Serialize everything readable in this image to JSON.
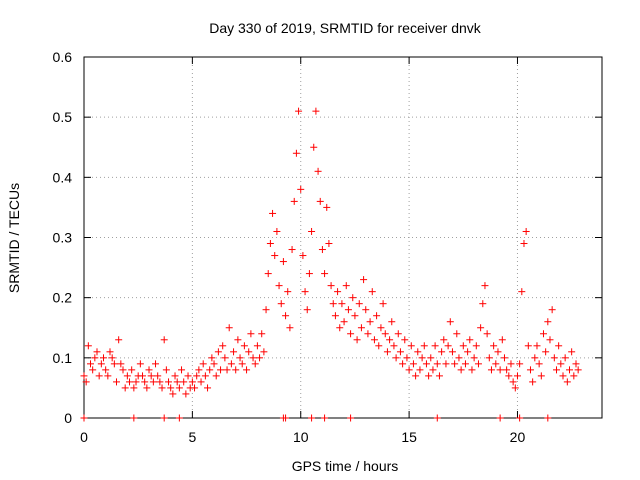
{
  "chart_data": {
    "type": "scatter",
    "title": "Day 330 of 2019, SRMTID for receiver dnvk",
    "xlabel": "GPS time / hours",
    "ylabel": "SRMTID / TECUs",
    "xlim": [
      0,
      23.9
    ],
    "ylim": [
      0,
      0.6
    ],
    "x_ticks": [
      "0",
      "5",
      "10",
      "15",
      "20"
    ],
    "x_tick_values": [
      0,
      5,
      10,
      15,
      20
    ],
    "y_ticks": [
      "0",
      "0.1",
      "0.2",
      "0.3",
      "0.4",
      "0.5",
      "0.6"
    ],
    "y_tick_values": [
      0,
      0.1,
      0.2,
      0.3,
      0.4,
      0.5,
      0.6
    ],
    "grid": true,
    "marker": "plus",
    "color": "#ff0000",
    "series": [
      {
        "name": "SRMTID",
        "points": [
          [
            0.0,
            0.07
          ],
          [
            0.1,
            0.06
          ],
          [
            0.2,
            0.12
          ],
          [
            0.3,
            0.09
          ],
          [
            0.4,
            0.08
          ],
          [
            0.5,
            0.1
          ],
          [
            0.6,
            0.11
          ],
          [
            0.7,
            0.07
          ],
          [
            0.8,
            0.09
          ],
          [
            0.9,
            0.1
          ],
          [
            1.0,
            0.08
          ],
          [
            1.1,
            0.07
          ],
          [
            1.2,
            0.11
          ],
          [
            1.3,
            0.1
          ],
          [
            1.4,
            0.09
          ],
          [
            1.5,
            0.06
          ],
          [
            1.6,
            0.13
          ],
          [
            1.7,
            0.09
          ],
          [
            1.8,
            0.08
          ],
          [
            1.9,
            0.05
          ],
          [
            2.0,
            0.07
          ],
          [
            2.1,
            0.06
          ],
          [
            2.2,
            0.08
          ],
          [
            2.3,
            0.05
          ],
          [
            2.4,
            0.06
          ],
          [
            2.5,
            0.07
          ],
          [
            2.6,
            0.09
          ],
          [
            2.7,
            0.07
          ],
          [
            2.8,
            0.06
          ],
          [
            2.9,
            0.05
          ],
          [
            3.0,
            0.08
          ],
          [
            3.1,
            0.07
          ],
          [
            3.2,
            0.06
          ],
          [
            3.3,
            0.09
          ],
          [
            3.4,
            0.07
          ],
          [
            3.5,
            0.06
          ],
          [
            3.6,
            0.05
          ],
          [
            3.7,
            0.13
          ],
          [
            3.8,
            0.08
          ],
          [
            3.9,
            0.06
          ],
          [
            4.0,
            0.05
          ],
          [
            4.1,
            0.04
          ],
          [
            4.2,
            0.07
          ],
          [
            4.3,
            0.06
          ],
          [
            4.4,
            0.05
          ],
          [
            4.5,
            0.08
          ],
          [
            4.6,
            0.06
          ],
          [
            4.7,
            0.04
          ],
          [
            4.8,
            0.07
          ],
          [
            4.9,
            0.05
          ],
          [
            5.0,
            0.06
          ],
          [
            5.1,
            0.05
          ],
          [
            5.2,
            0.07
          ],
          [
            5.3,
            0.08
          ],
          [
            5.4,
            0.06
          ],
          [
            5.5,
            0.09
          ],
          [
            5.6,
            0.07
          ],
          [
            5.7,
            0.05
          ],
          [
            5.8,
            0.08
          ],
          [
            5.9,
            0.1
          ],
          [
            6.0,
            0.09
          ],
          [
            6.1,
            0.07
          ],
          [
            6.2,
            0.11
          ],
          [
            6.3,
            0.08
          ],
          [
            6.4,
            0.12
          ],
          [
            6.5,
            0.1
          ],
          [
            6.6,
            0.08
          ],
          [
            6.7,
            0.15
          ],
          [
            6.8,
            0.09
          ],
          [
            6.9,
            0.11
          ],
          [
            7.0,
            0.08
          ],
          [
            7.1,
            0.13
          ],
          [
            7.2,
            0.1
          ],
          [
            7.3,
            0.09
          ],
          [
            7.4,
            0.12
          ],
          [
            7.5,
            0.08
          ],
          [
            7.6,
            0.11
          ],
          [
            7.7,
            0.14
          ],
          [
            7.8,
            0.1
          ],
          [
            7.9,
            0.09
          ],
          [
            8.0,
            0.12
          ],
          [
            8.1,
            0.1
          ],
          [
            8.2,
            0.14
          ],
          [
            8.3,
            0.11
          ],
          [
            8.4,
            0.18
          ],
          [
            8.5,
            0.24
          ],
          [
            8.6,
            0.29
          ],
          [
            8.7,
            0.34
          ],
          [
            8.8,
            0.27
          ],
          [
            8.9,
            0.31
          ],
          [
            9.0,
            0.22
          ],
          [
            9.1,
            0.19
          ],
          [
            9.2,
            0.26
          ],
          [
            9.3,
            0.17
          ],
          [
            9.4,
            0.21
          ],
          [
            9.5,
            0.15
          ],
          [
            9.6,
            0.28
          ],
          [
            9.7,
            0.36
          ],
          [
            9.8,
            0.44
          ],
          [
            9.9,
            0.51
          ],
          [
            10.0,
            0.38
          ],
          [
            10.1,
            0.27
          ],
          [
            10.2,
            0.21
          ],
          [
            10.3,
            0.18
          ],
          [
            10.4,
            0.24
          ],
          [
            10.5,
            0.31
          ],
          [
            10.6,
            0.45
          ],
          [
            10.7,
            0.51
          ],
          [
            10.8,
            0.41
          ],
          [
            10.9,
            0.36
          ],
          [
            11.0,
            0.28
          ],
          [
            11.1,
            0.24
          ],
          [
            11.2,
            0.35
          ],
          [
            11.3,
            0.29
          ],
          [
            11.4,
            0.22
          ],
          [
            11.5,
            0.19
          ],
          [
            11.6,
            0.17
          ],
          [
            11.7,
            0.21
          ],
          [
            11.8,
            0.15
          ],
          [
            11.9,
            0.19
          ],
          [
            12.0,
            0.16
          ],
          [
            12.1,
            0.22
          ],
          [
            12.2,
            0.18
          ],
          [
            12.3,
            0.14
          ],
          [
            12.4,
            0.2
          ],
          [
            12.5,
            0.17
          ],
          [
            12.6,
            0.13
          ],
          [
            12.7,
            0.19
          ],
          [
            12.8,
            0.15
          ],
          [
            12.9,
            0.23
          ],
          [
            13.0,
            0.18
          ],
          [
            13.1,
            0.14
          ],
          [
            13.2,
            0.16
          ],
          [
            13.3,
            0.21
          ],
          [
            13.4,
            0.13
          ],
          [
            13.5,
            0.17
          ],
          [
            13.6,
            0.12
          ],
          [
            13.7,
            0.15
          ],
          [
            13.8,
            0.19
          ],
          [
            13.9,
            0.14
          ],
          [
            14.0,
            0.11
          ],
          [
            14.1,
            0.13
          ],
          [
            14.2,
            0.16
          ],
          [
            14.3,
            0.12
          ],
          [
            14.4,
            0.1
          ],
          [
            14.5,
            0.14
          ],
          [
            14.6,
            0.11
          ],
          [
            14.7,
            0.09
          ],
          [
            14.8,
            0.13
          ],
          [
            14.9,
            0.1
          ],
          [
            15.0,
            0.08
          ],
          [
            15.1,
            0.12
          ],
          [
            15.2,
            0.09
          ],
          [
            15.3,
            0.07
          ],
          [
            15.4,
            0.11
          ],
          [
            15.5,
            0.08
          ],
          [
            15.6,
            0.1
          ],
          [
            15.7,
            0.12
          ],
          [
            15.8,
            0.09
          ],
          [
            15.9,
            0.07
          ],
          [
            16.0,
            0.1
          ],
          [
            16.1,
            0.08
          ],
          [
            16.2,
            0.12
          ],
          [
            16.3,
            0.09
          ],
          [
            16.4,
            0.07
          ],
          [
            16.5,
            0.11
          ],
          [
            16.6,
            0.13
          ],
          [
            16.7,
            0.09
          ],
          [
            16.8,
            0.12
          ],
          [
            16.9,
            0.16
          ],
          [
            17.0,
            0.11
          ],
          [
            17.1,
            0.09
          ],
          [
            17.2,
            0.14
          ],
          [
            17.3,
            0.1
          ],
          [
            17.4,
            0.08
          ],
          [
            17.5,
            0.12
          ],
          [
            17.6,
            0.09
          ],
          [
            17.7,
            0.11
          ],
          [
            17.8,
            0.13
          ],
          [
            17.9,
            0.08
          ],
          [
            18.0,
            0.1
          ],
          [
            18.1,
            0.12
          ],
          [
            18.2,
            0.09
          ],
          [
            18.3,
            0.15
          ],
          [
            18.4,
            0.19
          ],
          [
            18.5,
            0.22
          ],
          [
            18.6,
            0.14
          ],
          [
            18.7,
            0.1
          ],
          [
            18.8,
            0.08
          ],
          [
            18.9,
            0.12
          ],
          [
            19.0,
            0.09
          ],
          [
            19.1,
            0.11
          ],
          [
            19.2,
            0.08
          ],
          [
            19.3,
            0.13
          ],
          [
            19.4,
            0.1
          ],
          [
            19.5,
            0.08
          ],
          [
            19.6,
            0.07
          ],
          [
            19.7,
            0.09
          ],
          [
            19.8,
            0.06
          ],
          [
            19.9,
            0.05
          ],
          [
            20.0,
            0.07
          ],
          [
            20.1,
            0.09
          ],
          [
            20.2,
            0.21
          ],
          [
            20.3,
            0.29
          ],
          [
            20.4,
            0.31
          ],
          [
            20.5,
            0.12
          ],
          [
            20.6,
            0.08
          ],
          [
            20.7,
            0.06
          ],
          [
            20.8,
            0.1
          ],
          [
            20.9,
            0.12
          ],
          [
            21.0,
            0.09
          ],
          [
            21.1,
            0.07
          ],
          [
            21.2,
            0.14
          ],
          [
            21.3,
            0.11
          ],
          [
            21.4,
            0.16
          ],
          [
            21.5,
            0.13
          ],
          [
            21.6,
            0.18
          ],
          [
            21.7,
            0.1
          ],
          [
            21.8,
            0.08
          ],
          [
            21.9,
            0.12
          ],
          [
            22.0,
            0.09
          ],
          [
            22.1,
            0.07
          ],
          [
            22.2,
            0.1
          ],
          [
            22.3,
            0.06
          ],
          [
            22.4,
            0.08
          ],
          [
            22.5,
            0.11
          ],
          [
            22.6,
            0.07
          ],
          [
            22.7,
            0.09
          ],
          [
            22.8,
            0.08
          ]
        ]
      }
    ],
    "markers_on_x_axis": [
      0.0,
      2.3,
      3.7,
      4.4,
      9.2,
      9.3,
      10.5,
      11.1,
      12.3,
      16.3,
      19.2,
      20.1,
      21.4
    ]
  }
}
